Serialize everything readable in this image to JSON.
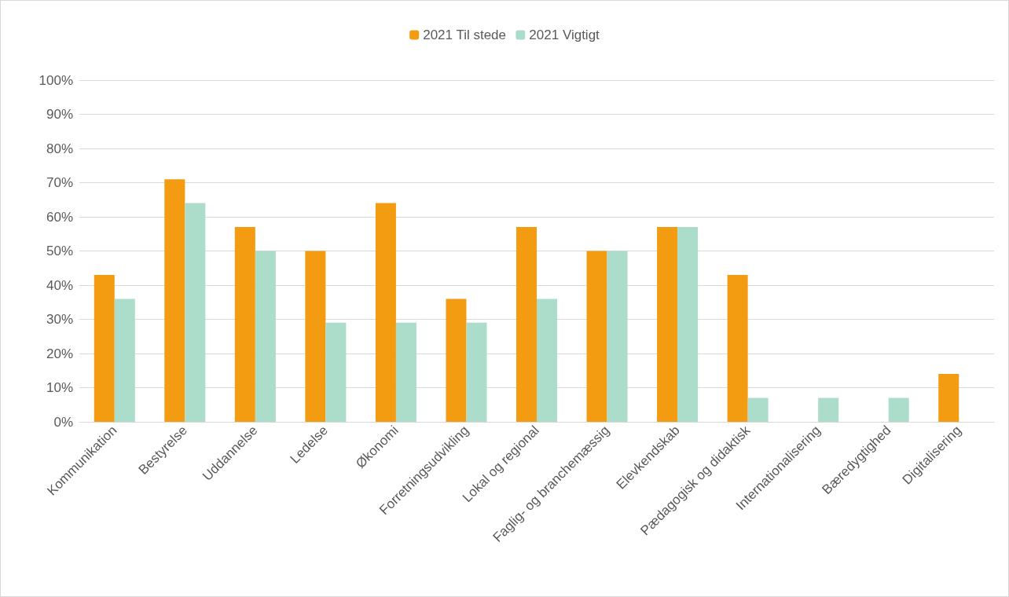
{
  "chart_data": {
    "type": "bar",
    "categories": [
      "Kommunikation",
      "Bestyrelse",
      "Uddannelse",
      "Ledelse",
      "Økonomi",
      "Forretningsudvikling",
      "Lokal og regional",
      "Faglig- og branchemæssig",
      "Elevkendskab",
      "Pædagogisk og didaktisk",
      "Internationalisering",
      "Bæredygtighed",
      "Digitalisering"
    ],
    "series": [
      {
        "name": "2021 Til stede",
        "color": "#f39c12",
        "values": [
          43,
          71,
          57,
          50,
          64,
          36,
          57,
          50,
          57,
          43,
          0,
          0,
          14
        ]
      },
      {
        "name": "2021 Vigtigt",
        "color": "#acdcca",
        "values": [
          36,
          64,
          50,
          29,
          29,
          29,
          36,
          50,
          57,
          7,
          7,
          7,
          0
        ]
      }
    ],
    "ylim": [
      0,
      100
    ],
    "yticks": [
      {
        "value": 0,
        "label": "0%"
      },
      {
        "value": 10,
        "label": "10%"
      },
      {
        "value": 20,
        "label": "20%"
      },
      {
        "value": 30,
        "label": "30%"
      },
      {
        "value": 40,
        "label": "40%"
      },
      {
        "value": 50,
        "label": "50%"
      },
      {
        "value": 60,
        "label": "60%"
      },
      {
        "value": 70,
        "label": "70%"
      },
      {
        "value": 80,
        "label": "80%"
      },
      {
        "value": 90,
        "label": "90%"
      },
      {
        "value": 100,
        "label": "100%"
      }
    ],
    "grid": "y",
    "legend": "top"
  }
}
